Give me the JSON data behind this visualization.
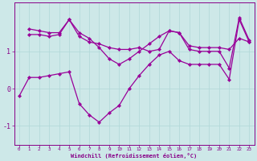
{
  "background_color": "#cde8e8",
  "line_color": "#990099",
  "grid_color": "#b0d8d8",
  "xlabel": "Windchill (Refroidissement éolien,°C)",
  "xlabel_color": "#880088",
  "tick_color": "#880088",
  "ylim": [
    -1.5,
    2.3
  ],
  "xlim": [
    -0.5,
    23.5
  ],
  "yticks": [
    -1,
    0,
    1
  ],
  "xticks": [
    0,
    1,
    2,
    3,
    4,
    5,
    6,
    7,
    8,
    9,
    10,
    11,
    12,
    13,
    14,
    15,
    16,
    17,
    18,
    19,
    20,
    21,
    22,
    23
  ],
  "line1_x": [
    1,
    2,
    3,
    4,
    5,
    6,
    7,
    8,
    9,
    10,
    11,
    12,
    13,
    14,
    15,
    16,
    17,
    18,
    19,
    20,
    21,
    22,
    23
  ],
  "line1_y": [
    1.6,
    1.55,
    1.5,
    1.5,
    1.85,
    1.4,
    1.25,
    1.2,
    1.1,
    1.05,
    1.05,
    1.1,
    1.0,
    1.05,
    1.55,
    1.5,
    1.15,
    1.1,
    1.1,
    1.1,
    1.05,
    1.35,
    1.25
  ],
  "line2_x": [
    1,
    2,
    3,
    4,
    5,
    6,
    7,
    8,
    9,
    10,
    11,
    12,
    13,
    14,
    15,
    16,
    17,
    18,
    19,
    20,
    21,
    22,
    23
  ],
  "line2_y": [
    1.45,
    1.45,
    1.4,
    1.45,
    1.85,
    1.5,
    1.35,
    1.1,
    0.8,
    0.65,
    0.8,
    1.0,
    1.2,
    1.4,
    1.55,
    1.5,
    1.05,
    1.0,
    1.0,
    1.0,
    0.55,
    1.9,
    1.3
  ],
  "line3_x": [
    0,
    1,
    2,
    3,
    4,
    5,
    6,
    7,
    8,
    9,
    10,
    11,
    12,
    13,
    14,
    15,
    16,
    17,
    18,
    19,
    20,
    21,
    22,
    23
  ],
  "line3_y": [
    -0.2,
    0.3,
    0.3,
    0.35,
    0.4,
    0.45,
    -0.4,
    -0.7,
    -0.9,
    -0.65,
    -0.45,
    0.0,
    0.35,
    0.65,
    0.9,
    1.0,
    0.75,
    0.65,
    0.65,
    0.65,
    0.65,
    0.25,
    1.85,
    1.25
  ]
}
